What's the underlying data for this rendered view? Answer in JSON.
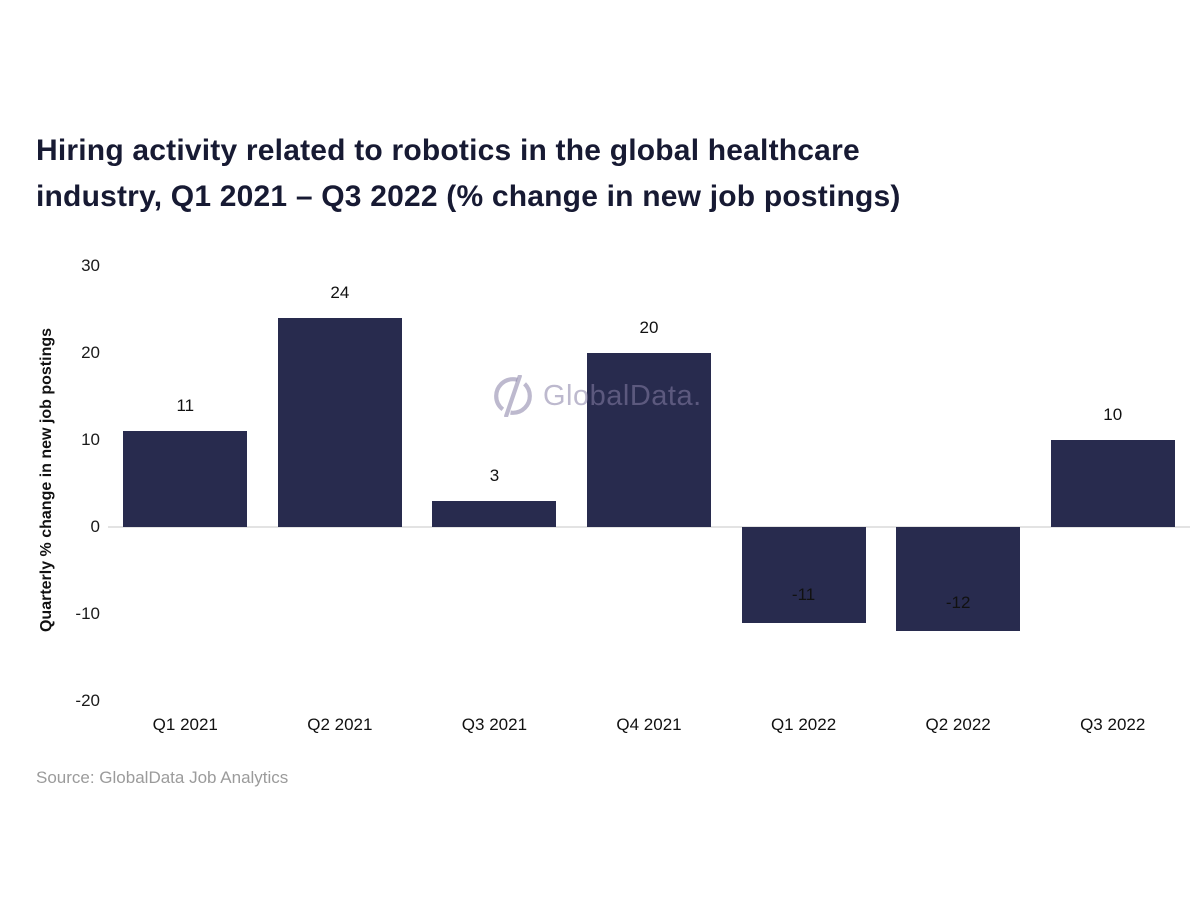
{
  "title": {
    "line1": "Hiring activity related to robotics in the global healthcare",
    "line2": "industry, Q1 2021 – Q3 2022 (% change in new job postings)"
  },
  "watermark": {
    "text": "GlobalData.",
    "logo_icon": "globaldata-circle-slash-icon",
    "color": "#867fa5"
  },
  "source": "Source: GlobalData Job Analytics",
  "colors": {
    "bar": "#282b4e",
    "title_text": "#171a33",
    "axis_text": "#111111",
    "zero_line": "#e3e3e3",
    "source_text": "#9b9b9b"
  },
  "chart_data": {
    "type": "bar",
    "title": "Hiring activity related to robotics in the global healthcare industry, Q1 2021 – Q3 2022 (% change in new job postings)",
    "categories": [
      "Q1 2021",
      "Q2 2021",
      "Q3 2021",
      "Q4 2021",
      "Q1 2022",
      "Q2 2022",
      "Q3 2022"
    ],
    "values": [
      11,
      24,
      3,
      20,
      -11,
      -12,
      10
    ],
    "data_labels": [
      "11",
      "24",
      "3",
      "20",
      "-11",
      "-12",
      "10"
    ],
    "xlabel": "",
    "ylabel": "Quarterly % change in new job postings",
    "ylim": [
      -20,
      30
    ],
    "yticks": [
      30,
      20,
      10,
      0,
      -10,
      -20
    ],
    "grid": false,
    "legend": false,
    "bar_color": "#282b4e",
    "source": "Source: GlobalData Job Analytics",
    "watermark": "GlobalData."
  }
}
